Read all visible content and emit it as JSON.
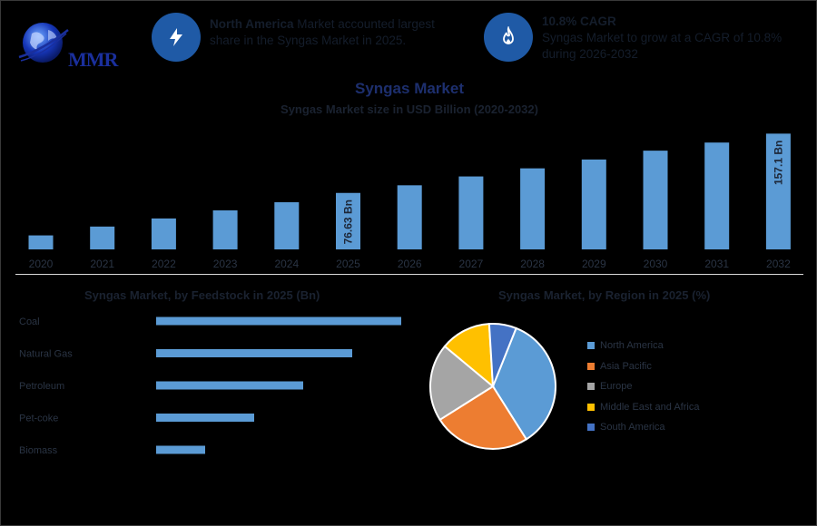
{
  "header": {
    "logo_text": "MMR",
    "stat1": {
      "bold": "North America",
      "text_line1": " Market accounted largest",
      "text_line2": "share in the Syngas Market in 2025.",
      "icon": "lightning-icon"
    },
    "stat2": {
      "bold": "10.8% CAGR",
      "text_line1": "Syngas Market to grow at a CAGR of 10.8%",
      "text_line2": "during 2026-2032",
      "icon": "flame-icon"
    }
  },
  "colors": {
    "bar": "#5b9bd5",
    "icon_bg": "#1f5aa6",
    "pie": [
      "#5b9bd5",
      "#ed7d31",
      "#a5a5a5",
      "#ffc000",
      "#4472c4"
    ]
  },
  "chart_data": [
    {
      "type": "bar",
      "title": "Syngas Market",
      "subtitle": "Syngas Market size in USD Billion (2020-2032)",
      "categories": [
        "2020",
        "2021",
        "2022",
        "2023",
        "2024",
        "2025",
        "2026",
        "2027",
        "2028",
        "2029",
        "2030",
        "2031",
        "2032"
      ],
      "values": [
        19,
        31,
        42,
        53,
        64,
        76.63,
        87,
        99,
        110,
        122,
        134,
        145,
        157.1
      ],
      "data_labels": {
        "2025": "76.63 Bn",
        "2032": "157.1 Bn"
      },
      "ylim": [
        0,
        160
      ]
    },
    {
      "type": "bar",
      "orientation": "horizontal",
      "title": "Syngas Market, by Feedstock in 2025 (Bn)",
      "categories": [
        "Coal",
        "Natural Gas",
        "Petroleum",
        "Pet-coke",
        "Biomass"
      ],
      "values": [
        5,
        4,
        3,
        2,
        1
      ],
      "xlim": [
        0,
        5
      ]
    },
    {
      "type": "pie",
      "title": "Syngas Market, by Region in 2025 (%)",
      "labels": [
        "North America",
        "Asia Pacific",
        "Europe",
        "Middle East and Africa",
        "South America"
      ],
      "values": [
        35,
        25,
        20,
        13,
        7
      ]
    }
  ]
}
